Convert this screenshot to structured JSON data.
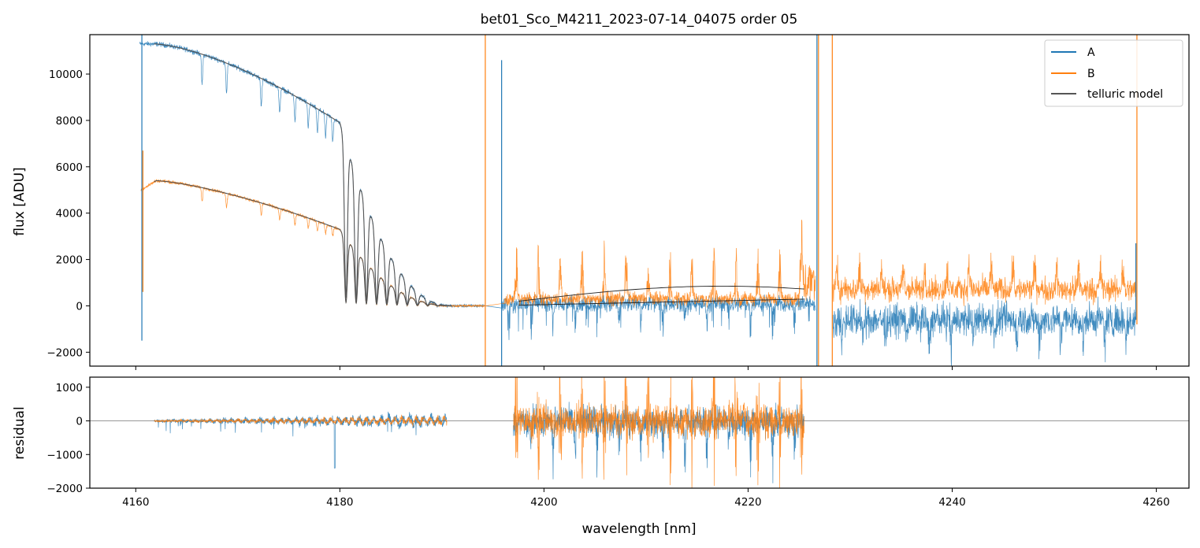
{
  "chart_data": [
    {
      "panel": "top",
      "type": "line",
      "title": "bet01_Sco_M4211_2023-07-14_04075  order 05",
      "xlabel": "",
      "ylabel": "flux [ADU]",
      "xlim": [
        4155.5,
        4263.2
      ],
      "ylim": [
        -2600,
        11700
      ],
      "yticks": [
        -2000,
        0,
        2000,
        4000,
        6000,
        8000,
        10000
      ],
      "xticks": [
        4160,
        4180,
        4200,
        4220,
        4240,
        4260
      ],
      "legend_position": "top-right",
      "legend": [
        "A",
        "B",
        "telluric model"
      ],
      "series": [
        {
          "name": "A",
          "color": "#1f77b4",
          "description": "spectrum A: ~11300 ADU at 4161 nm declining to ~7500 at 4178 nm, deep telluric absorption comb 4180-4188 nm, ~0 near 4190-4194, noisy around 0 with dips to -2500 beyond 4196 nm; spikes at 4161, 4196, 4226.7, 4258"
        },
        {
          "name": "B",
          "color": "#ff7f0e",
          "description": "spectrum B: ~5200 ADU at 4161 nm declining to ~3300 at 4180 nm, absorption comb 4180-4188 nm, ~0 at 4190-4194, noisy emission-like peaks up to ~3500 beyond 4196 nm; spikes at 4194.2, 4228.2, 4258"
        },
        {
          "name": "telluric model",
          "color": "#555555",
          "description": "smooth model fits: A 11300→0 over 4162-4191 nm, B 5400→0 over 4162-4191 nm, low ~0-700 curves over 4197-4225.5 nm"
        }
      ]
    },
    {
      "panel": "bottom",
      "type": "line",
      "xlabel": "wavelength [nm]",
      "ylabel": "residual",
      "xlim": [
        4155.5,
        4263.2
      ],
      "ylim": [
        -2000,
        1300
      ],
      "yticks": [
        -2000,
        -1000,
        0,
        1000
      ],
      "xticks": [
        4160,
        4180,
        4200,
        4220,
        4240,
        4260
      ],
      "reference_line": 0,
      "series": [
        {
          "name": "A residual",
          "color": "#1f77b4",
          "x_range": [
            4161.8,
            4190.5
          ],
          "x_range_2": [
            4197,
            4225.5
          ]
        },
        {
          "name": "B residual",
          "color": "#ff7f0e",
          "x_range": [
            4161.8,
            4190.5
          ],
          "x_range_2": [
            4197,
            4225.5
          ]
        }
      ]
    }
  ],
  "tick_labels": {
    "top_y": [
      "−2000",
      "0",
      "2000",
      "4000",
      "6000",
      "8000",
      "10000"
    ],
    "bottom_y": [
      "−2000",
      "−1000",
      "0",
      "1000"
    ],
    "x": [
      "4160",
      "4180",
      "4200",
      "4220",
      "4240",
      "4260"
    ]
  },
  "colors": {
    "A": "#1f77b4",
    "B": "#ff7f0e",
    "model": "#555555",
    "zero_line": "#888888"
  }
}
